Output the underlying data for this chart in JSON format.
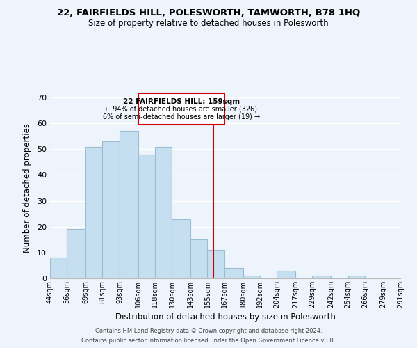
{
  "title1": "22, FAIRFIELDS HILL, POLESWORTH, TAMWORTH, B78 1HQ",
  "title2": "Size of property relative to detached houses in Polesworth",
  "xlabel": "Distribution of detached houses by size in Polesworth",
  "ylabel": "Number of detached properties",
  "bar_values": [
    8,
    19,
    51,
    53,
    57,
    48,
    51,
    23,
    15,
    11,
    4,
    1,
    0,
    3,
    0,
    1,
    0,
    1
  ],
  "bin_edges": [
    44,
    56,
    69,
    81,
    93,
    106,
    118,
    130,
    143,
    155,
    167,
    180,
    192,
    204,
    217,
    229,
    242,
    254,
    266
  ],
  "xtick_labels": [
    "44sqm",
    "56sqm",
    "69sqm",
    "81sqm",
    "93sqm",
    "106sqm",
    "118sqm",
    "130sqm",
    "143sqm",
    "155sqm",
    "167sqm",
    "180sqm",
    "192sqm",
    "204sqm",
    "217sqm",
    "229sqm",
    "242sqm",
    "254sqm",
    "266sqm",
    "279sqm",
    "291sqm"
  ],
  "bar_color": "#c5dff0",
  "bar_edgecolor": "#9bbdd4",
  "vline_x": 159,
  "vline_color": "#cc0000",
  "ylim": [
    0,
    70
  ],
  "yticks": [
    0,
    10,
    20,
    30,
    40,
    50,
    60,
    70
  ],
  "annotation_title": "22 FAIRFIELDS HILL: 159sqm",
  "annotation_line1": "← 94% of detached houses are smaller (326)",
  "annotation_line2": "6% of semi-detached houses are larger (19) →",
  "annotation_box_color": "#ffffff",
  "annotation_box_edgecolor": "#cc0000",
  "footer1": "Contains HM Land Registry data © Crown copyright and database right 2024.",
  "footer2": "Contains public sector information licensed under the Open Government Licence v3.0.",
  "background_color": "#eef4fb"
}
